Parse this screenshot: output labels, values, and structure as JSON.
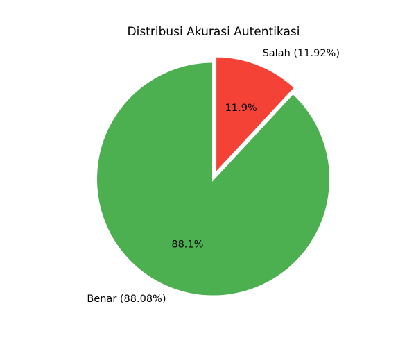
{
  "chart_data": {
    "type": "pie",
    "title": "Distribusi Akurasi Autentikasi",
    "start_angle_deg": 90,
    "direction": "clockwise",
    "slices": [
      {
        "name": "Salah",
        "label": "Salah (11.92%)",
        "percent_label": "11.9%",
        "value": 11.92,
        "color": "#f44336",
        "exploded": true
      },
      {
        "name": "Benar",
        "label": "Benar (88.08%)",
        "percent_label": "88.1%",
        "value": 88.08,
        "color": "#4caf50",
        "exploded": false
      }
    ]
  }
}
